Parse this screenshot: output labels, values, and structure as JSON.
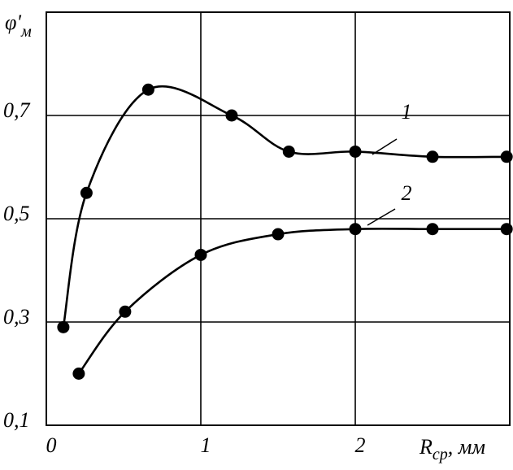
{
  "chart_data": {
    "type": "line",
    "y_label": {
      "main": "φ'",
      "sub": "м"
    },
    "x_label": {
      "main": "R",
      "sub": "ср",
      "unit": ", мм"
    },
    "xlim": [
      0,
      3
    ],
    "ylim": [
      0.1,
      0.9
    ],
    "xticks": [
      0,
      1,
      2
    ],
    "yticks": [
      {
        "value": 0.1,
        "label": "0,1"
      },
      {
        "value": 0.3,
        "label": "0,3"
      },
      {
        "value": 0.5,
        "label": "0,5"
      },
      {
        "value": 0.7,
        "label": "0,7"
      }
    ],
    "grid": true,
    "series": [
      {
        "name": "1",
        "color": "#000000",
        "x": [
          0.11,
          0.26,
          0.66,
          1.2,
          1.57,
          2.0,
          2.5,
          2.98
        ],
        "values": [
          0.29,
          0.55,
          0.75,
          0.7,
          0.63,
          0.63,
          0.62,
          0.62
        ]
      },
      {
        "name": "2",
        "color": "#000000",
        "x": [
          0.21,
          0.51,
          1.0,
          1.5,
          2.0,
          2.5,
          2.98
        ],
        "values": [
          0.2,
          0.32,
          0.43,
          0.47,
          0.48,
          0.48,
          0.48
        ]
      }
    ]
  }
}
